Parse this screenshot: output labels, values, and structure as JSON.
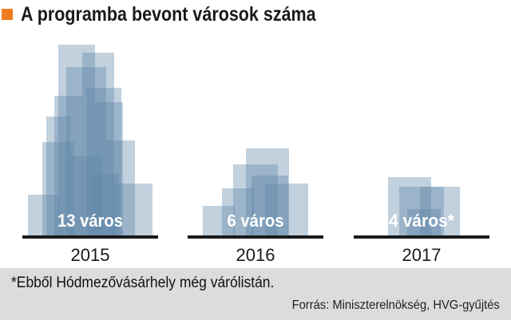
{
  "header": {
    "title": "A programba bevont városok száma"
  },
  "colors": {
    "accent": "#f07c1f",
    "rect": "#5f86a8",
    "baseline": "#1a1a1a",
    "label": "#ffffff",
    "footer_bg": "#dcdcdc"
  },
  "chart_data": {
    "type": "bar",
    "title": "A programba bevont városok száma",
    "categories": [
      "2015",
      "2016",
      "2017"
    ],
    "values": [
      13,
      6,
      4
    ],
    "data_labels": [
      "13 város",
      "6 város",
      "4 város*"
    ],
    "xlabel": "",
    "ylabel": "",
    "grid": false
  },
  "footer": {
    "note": "*Ebből Hódmezővásárhely még várólistán.",
    "source": "Forrás: Miniszterelnökség, HVG-gyűjtés"
  }
}
